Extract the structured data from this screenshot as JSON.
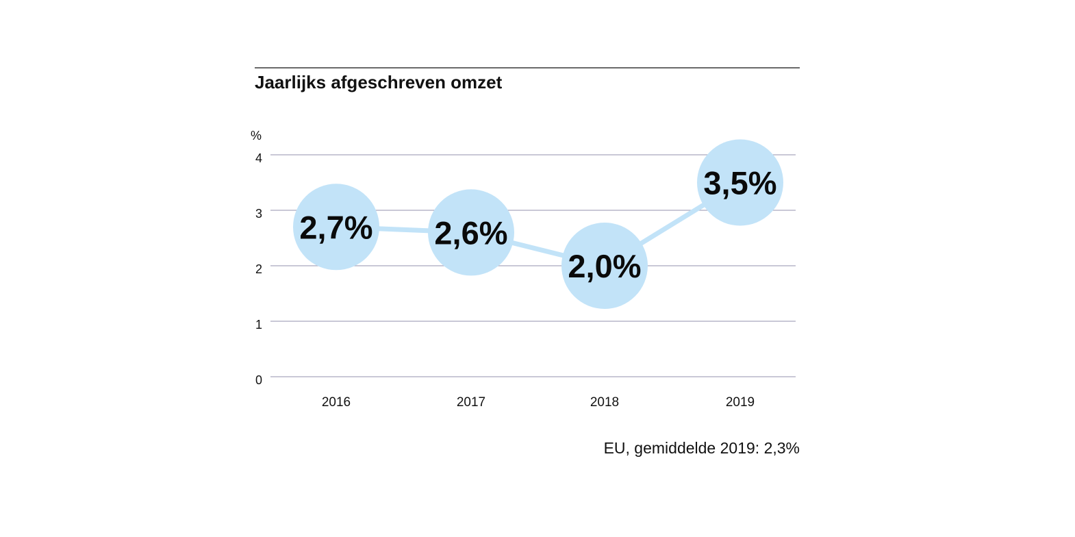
{
  "chart_data": {
    "type": "line",
    "title": "Jaarlijks afgeschreven omzet",
    "unit_label": "%",
    "categories": [
      "2016",
      "2017",
      "2018",
      "2019"
    ],
    "series": [
      {
        "values": [
          2.7,
          2.6,
          2.0,
          3.5
        ],
        "data_labels": [
          "2,7%",
          "2,6%",
          "2,0%",
          "3,5%"
        ],
        "color": "#c2e3f8"
      }
    ],
    "yticks": [
      "0",
      "1",
      "2",
      "3",
      "4"
    ],
    "ylim": [
      0,
      4
    ],
    "grid": true,
    "footnote": "EU, gemiddelde 2019: 2,3%",
    "colors": {
      "bubble": "#c2e3f8",
      "line": "#c2e3f8",
      "gridline": "#a9a6bd",
      "title_rule": "#111111",
      "text": "#111111"
    }
  }
}
